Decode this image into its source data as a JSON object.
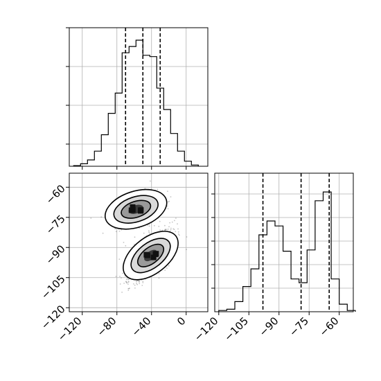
{
  "chart_data": [
    {
      "panel": "top-left",
      "type": "histogram",
      "variable": "x",
      "xlim": [
        -135,
        25
      ],
      "ylim": [
        0,
        1
      ],
      "x_ticks": [
        -120,
        -80,
        -40,
        0
      ],
      "grid": true,
      "bin_edges": [
        -130,
        -122,
        -114,
        -106,
        -98,
        -90,
        -82,
        -74,
        -66,
        -58,
        -50,
        -42,
        -34,
        -26,
        -18,
        -10,
        -2,
        6,
        14
      ],
      "counts": [
        0.005,
        0.02,
        0.05,
        0.12,
        0.25,
        0.42,
        0.58,
        0.9,
        0.95,
        1.0,
        0.88,
        0.87,
        0.62,
        0.45,
        0.26,
        0.12,
        0.04,
        0.01
      ],
      "quantiles": [
        -70,
        -50,
        -30
      ]
    },
    {
      "panel": "top-right",
      "type": "histogram",
      "variable": "y",
      "xlim": [
        -122,
        -53
      ],
      "ylim": [
        0,
        1
      ],
      "x_ticks": [
        -120,
        -105,
        -90,
        -75,
        -60
      ],
      "x_tick_labels": [
        "−120",
        "−105",
        "−90",
        "−75",
        "−60"
      ],
      "grid": true,
      "bin_edges": [
        -120,
        -116,
        -112,
        -108,
        -104,
        -100,
        -96,
        -92,
        -88,
        -84,
        -80,
        -76,
        -72,
        -68,
        -64,
        -60,
        -56,
        -52
      ],
      "counts": [
        0.01,
        0.02,
        0.08,
        0.2,
        0.34,
        0.61,
        0.72,
        0.68,
        0.48,
        0.26,
        0.23,
        0.49,
        0.88,
        0.95,
        0.26,
        0.06,
        0.01
      ],
      "quantiles": [
        -98,
        -79,
        -65
      ]
    },
    {
      "panel": "bottom-left",
      "type": "scatter-density",
      "xlabel_values": [
        -120,
        -80,
        -40,
        0
      ],
      "x_tick_labels": [
        "−120",
        "−80",
        "−40",
        "0"
      ],
      "y_ticks": [
        -60,
        -75,
        -90,
        -105,
        -120
      ],
      "y_tick_labels": [
        "−60",
        "−75",
        "−90",
        "−105",
        "−120"
      ],
      "xlim": [
        -135,
        25
      ],
      "ylim": [
        -122,
        -53
      ],
      "grid": true,
      "clusters": [
        {
          "center_x": -58,
          "center_y": -71,
          "sigma_major": 13,
          "sigma_minor": 3.5,
          "angle_deg": 12
        },
        {
          "center_x": -41,
          "center_y": -94,
          "sigma_major": 15,
          "sigma_minor": 3.8,
          "angle_deg": 38
        }
      ]
    }
  ]
}
